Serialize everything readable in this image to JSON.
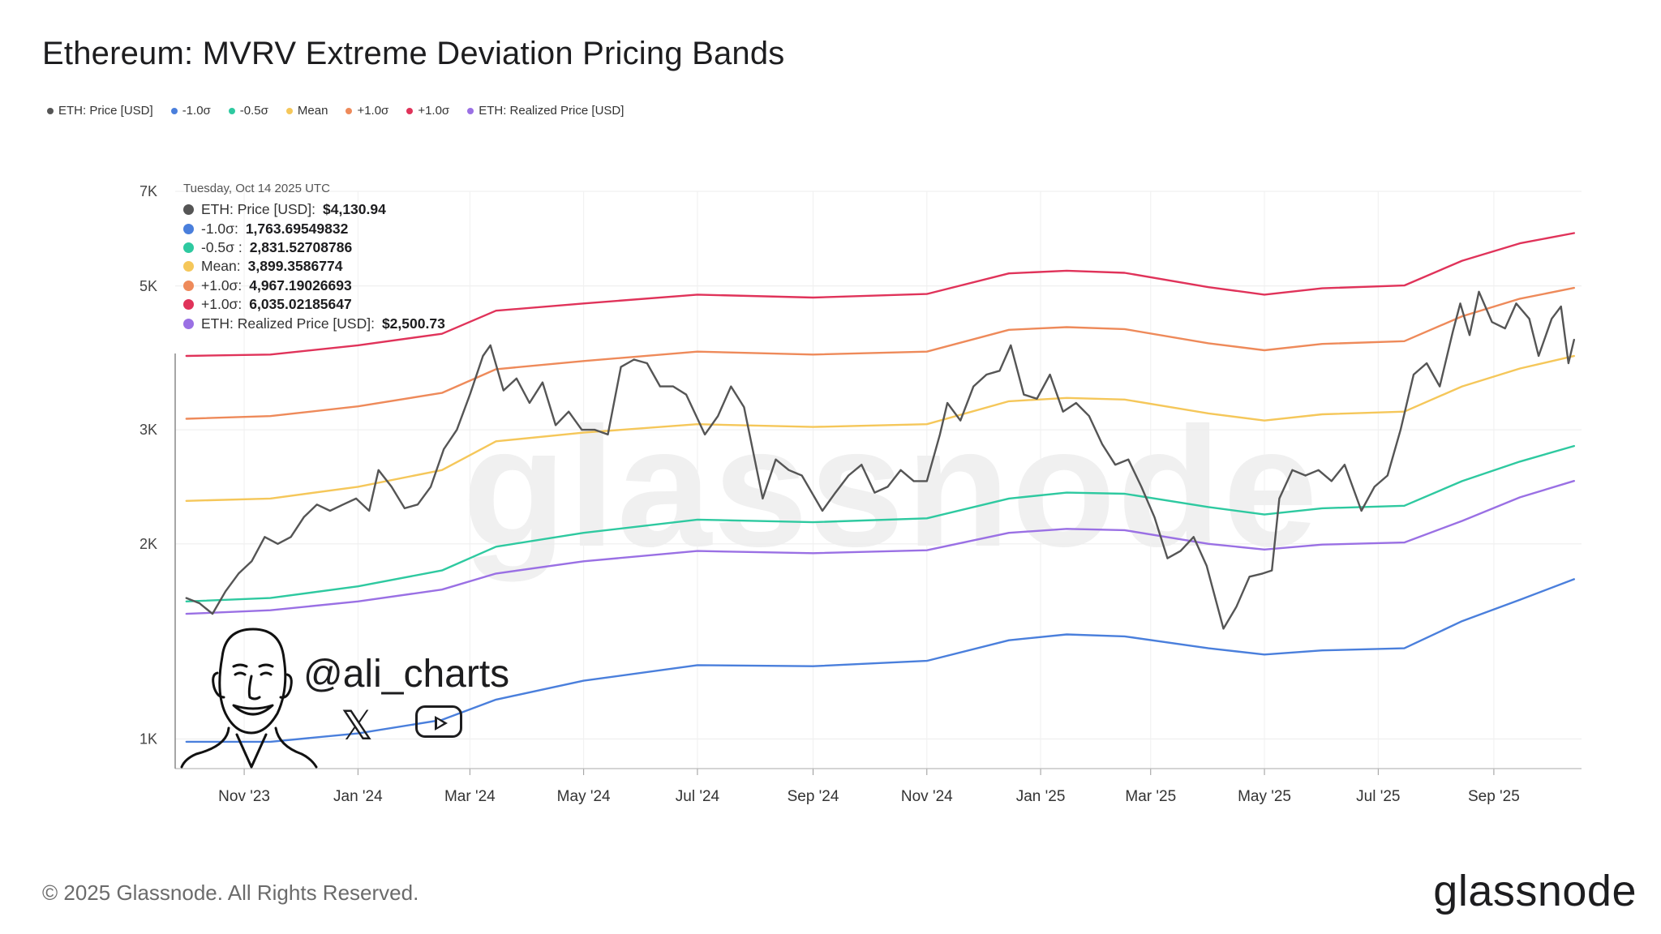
{
  "header": {
    "title": "Ethereum: MVRV Extreme Deviation Pricing Bands"
  },
  "footer": {
    "copyright": "© 2025 Glassnode. All Rights Reserved.",
    "brand": "glassnode"
  },
  "watermark": "glassnode",
  "branding": {
    "handle": "@ali_charts",
    "icons": [
      "avatar-sketch-icon",
      "x-logo-icon",
      "youtube-icon"
    ]
  },
  "tooltip": {
    "date": "Tuesday, Oct 14 2025 UTC",
    "rows": [
      {
        "label": "ETH: Price [USD]:",
        "value": "$4,130.94",
        "color": "#555555"
      },
      {
        "label": "-1.0σ:",
        "value": "1,763.69549832",
        "color": "#4a7fdc"
      },
      {
        "label": "-0.5σ :",
        "value": "2,831.52708786",
        "color": "#2ec9a0"
      },
      {
        "label": "Mean:",
        "value": "3,899.3586774",
        "color": "#f5c75a"
      },
      {
        "label": "+1.0σ:",
        "value": "4,967.19026693",
        "color": "#ee8a5a"
      },
      {
        "label": "+1.0σ:",
        "value": "6,035.02185647",
        "color": "#e0335a"
      },
      {
        "label": "ETH: Realized Price [USD]:",
        "value": "$2,500.73",
        "color": "#9a70e4"
      }
    ]
  },
  "chart_data": {
    "type": "line",
    "title": "Ethereum: MVRV Extreme Deviation Pricing Bands",
    "y_scale": "log",
    "ylim": [
      900,
      7000
    ],
    "y_ticks": [
      {
        "value": 1000,
        "label": "1K"
      },
      {
        "value": 2000,
        "label": "2K"
      },
      {
        "value": 3000,
        "label": "3K"
      },
      {
        "value": 5000,
        "label": "5K"
      },
      {
        "value": 7000,
        "label": "7K"
      }
    ],
    "xlim": [
      "2023-09-25",
      "2025-10-18"
    ],
    "x_ticks": [
      {
        "date": "2023-11-01",
        "label": "Nov '23"
      },
      {
        "date": "2024-01-01",
        "label": "Jan '24"
      },
      {
        "date": "2024-03-01",
        "label": "Mar '24"
      },
      {
        "date": "2024-05-01",
        "label": "May '24"
      },
      {
        "date": "2024-07-01",
        "label": "Jul '24"
      },
      {
        "date": "2024-09-01",
        "label": "Sep '24"
      },
      {
        "date": "2024-11-01",
        "label": "Nov '24"
      },
      {
        "date": "2025-01-01",
        "label": "Jan '25"
      },
      {
        "date": "2025-03-01",
        "label": "Mar '25"
      },
      {
        "date": "2025-05-01",
        "label": "May '25"
      },
      {
        "date": "2025-07-01",
        "label": "Jul '25"
      },
      {
        "date": "2025-09-01",
        "label": "Sep '25"
      }
    ],
    "grid": true,
    "legend_position": "top-left",
    "series": [
      {
        "name": "ETH: Price [USD]",
        "color": "#555555",
        "width": 2.4,
        "points": [
          [
            "2023-10-01",
            1650
          ],
          [
            "2023-10-08",
            1620
          ],
          [
            "2023-10-15",
            1560
          ],
          [
            "2023-10-22",
            1690
          ],
          [
            "2023-10-29",
            1800
          ],
          [
            "2023-11-05",
            1880
          ],
          [
            "2023-11-12",
            2050
          ],
          [
            "2023-11-19",
            2000
          ],
          [
            "2023-11-26",
            2050
          ],
          [
            "2023-12-03",
            2200
          ],
          [
            "2023-12-10",
            2300
          ],
          [
            "2023-12-17",
            2250
          ],
          [
            "2023-12-24",
            2300
          ],
          [
            "2023-12-31",
            2350
          ],
          [
            "2024-01-07",
            2250
          ],
          [
            "2024-01-12",
            2600
          ],
          [
            "2024-01-19",
            2450
          ],
          [
            "2024-01-26",
            2270
          ],
          [
            "2024-02-02",
            2300
          ],
          [
            "2024-02-09",
            2450
          ],
          [
            "2024-02-16",
            2800
          ],
          [
            "2024-02-23",
            3000
          ],
          [
            "2024-03-01",
            3400
          ],
          [
            "2024-03-08",
            3900
          ],
          [
            "2024-03-12",
            4050
          ],
          [
            "2024-03-19",
            3450
          ],
          [
            "2024-03-26",
            3600
          ],
          [
            "2024-04-02",
            3300
          ],
          [
            "2024-04-09",
            3550
          ],
          [
            "2024-04-16",
            3050
          ],
          [
            "2024-04-23",
            3200
          ],
          [
            "2024-04-30",
            3000
          ],
          [
            "2024-05-07",
            3000
          ],
          [
            "2024-05-14",
            2950
          ],
          [
            "2024-05-21",
            3750
          ],
          [
            "2024-05-28",
            3850
          ],
          [
            "2024-06-04",
            3800
          ],
          [
            "2024-06-11",
            3500
          ],
          [
            "2024-06-18",
            3500
          ],
          [
            "2024-06-25",
            3400
          ],
          [
            "2024-07-05",
            2950
          ],
          [
            "2024-07-12",
            3150
          ],
          [
            "2024-07-19",
            3500
          ],
          [
            "2024-07-26",
            3250
          ],
          [
            "2024-08-05",
            2350
          ],
          [
            "2024-08-12",
            2700
          ],
          [
            "2024-08-19",
            2600
          ],
          [
            "2024-08-26",
            2550
          ],
          [
            "2024-09-06",
            2250
          ],
          [
            "2024-09-13",
            2400
          ],
          [
            "2024-09-20",
            2550
          ],
          [
            "2024-09-27",
            2650
          ],
          [
            "2024-10-04",
            2400
          ],
          [
            "2024-10-11",
            2450
          ],
          [
            "2024-10-18",
            2600
          ],
          [
            "2024-10-25",
            2500
          ],
          [
            "2024-11-01",
            2500
          ],
          [
            "2024-11-08",
            2950
          ],
          [
            "2024-11-12",
            3300
          ],
          [
            "2024-11-19",
            3100
          ],
          [
            "2024-11-26",
            3500
          ],
          [
            "2024-12-03",
            3650
          ],
          [
            "2024-12-10",
            3700
          ],
          [
            "2024-12-16",
            4050
          ],
          [
            "2024-12-23",
            3400
          ],
          [
            "2024-12-30",
            3350
          ],
          [
            "2025-01-06",
            3650
          ],
          [
            "2025-01-13",
            3200
          ],
          [
            "2025-01-20",
            3300
          ],
          [
            "2025-01-27",
            3150
          ],
          [
            "2025-02-03",
            2850
          ],
          [
            "2025-02-10",
            2650
          ],
          [
            "2025-02-17",
            2700
          ],
          [
            "2025-02-24",
            2450
          ],
          [
            "2025-03-03",
            2200
          ],
          [
            "2025-03-10",
            1900
          ],
          [
            "2025-03-17",
            1950
          ],
          [
            "2025-03-24",
            2050
          ],
          [
            "2025-03-31",
            1850
          ],
          [
            "2025-04-09",
            1480
          ],
          [
            "2025-04-16",
            1600
          ],
          [
            "2025-04-23",
            1780
          ],
          [
            "2025-04-30",
            1800
          ],
          [
            "2025-05-05",
            1820
          ],
          [
            "2025-05-09",
            2350
          ],
          [
            "2025-05-16",
            2600
          ],
          [
            "2025-05-23",
            2550
          ],
          [
            "2025-05-30",
            2600
          ],
          [
            "2025-06-06",
            2500
          ],
          [
            "2025-06-13",
            2650
          ],
          [
            "2025-06-22",
            2250
          ],
          [
            "2025-06-29",
            2450
          ],
          [
            "2025-07-06",
            2550
          ],
          [
            "2025-07-13",
            3000
          ],
          [
            "2025-07-20",
            3650
          ],
          [
            "2025-07-27",
            3800
          ],
          [
            "2025-08-03",
            3500
          ],
          [
            "2025-08-10",
            4250
          ],
          [
            "2025-08-14",
            4700
          ],
          [
            "2025-08-19",
            4200
          ],
          [
            "2025-08-24",
            4900
          ],
          [
            "2025-08-31",
            4400
          ],
          [
            "2025-09-07",
            4300
          ],
          [
            "2025-09-13",
            4700
          ],
          [
            "2025-09-20",
            4450
          ],
          [
            "2025-09-25",
            3900
          ],
          [
            "2025-10-02",
            4450
          ],
          [
            "2025-10-07",
            4650
          ],
          [
            "2025-10-11",
            3800
          ],
          [
            "2025-10-14",
            4130
          ]
        ]
      },
      {
        "name": "-1.0σ",
        "color": "#4a7fdc",
        "width": 2.4,
        "points": [
          [
            "2023-10-01",
            990
          ],
          [
            "2023-11-15",
            990
          ],
          [
            "2024-01-01",
            1020
          ],
          [
            "2024-02-15",
            1070
          ],
          [
            "2024-03-15",
            1150
          ],
          [
            "2024-05-01",
            1230
          ],
          [
            "2024-07-01",
            1300
          ],
          [
            "2024-09-01",
            1295
          ],
          [
            "2024-11-01",
            1320
          ],
          [
            "2024-12-15",
            1420
          ],
          [
            "2025-01-15",
            1450
          ],
          [
            "2025-02-15",
            1440
          ],
          [
            "2025-04-01",
            1380
          ],
          [
            "2025-05-01",
            1350
          ],
          [
            "2025-06-01",
            1370
          ],
          [
            "2025-07-15",
            1380
          ],
          [
            "2025-08-15",
            1520
          ],
          [
            "2025-09-15",
            1640
          ],
          [
            "2025-10-14",
            1764
          ]
        ]
      },
      {
        "name": "-0.5σ",
        "color": "#2ec9a0",
        "width": 2.4,
        "points": [
          [
            "2023-10-01",
            1630
          ],
          [
            "2023-11-15",
            1650
          ],
          [
            "2024-01-01",
            1720
          ],
          [
            "2024-02-15",
            1820
          ],
          [
            "2024-03-15",
            1980
          ],
          [
            "2024-05-01",
            2080
          ],
          [
            "2024-07-01",
            2180
          ],
          [
            "2024-09-01",
            2160
          ],
          [
            "2024-11-01",
            2190
          ],
          [
            "2024-12-15",
            2350
          ],
          [
            "2025-01-15",
            2400
          ],
          [
            "2025-02-15",
            2390
          ],
          [
            "2025-04-01",
            2280
          ],
          [
            "2025-05-01",
            2220
          ],
          [
            "2025-06-01",
            2270
          ],
          [
            "2025-07-15",
            2290
          ],
          [
            "2025-08-15",
            2500
          ],
          [
            "2025-09-15",
            2680
          ],
          [
            "2025-10-14",
            2832
          ]
        ]
      },
      {
        "name": "Mean",
        "color": "#f5c75a",
        "width": 2.4,
        "points": [
          [
            "2023-10-01",
            2330
          ],
          [
            "2023-11-15",
            2350
          ],
          [
            "2024-01-01",
            2450
          ],
          [
            "2024-02-15",
            2600
          ],
          [
            "2024-03-15",
            2880
          ],
          [
            "2024-05-01",
            2970
          ],
          [
            "2024-07-01",
            3060
          ],
          [
            "2024-09-01",
            3030
          ],
          [
            "2024-11-01",
            3060
          ],
          [
            "2024-12-15",
            3320
          ],
          [
            "2025-01-15",
            3360
          ],
          [
            "2025-02-15",
            3340
          ],
          [
            "2025-04-01",
            3180
          ],
          [
            "2025-05-01",
            3100
          ],
          [
            "2025-06-01",
            3170
          ],
          [
            "2025-07-15",
            3200
          ],
          [
            "2025-08-15",
            3500
          ],
          [
            "2025-09-15",
            3730
          ],
          [
            "2025-10-14",
            3899
          ]
        ]
      },
      {
        "name": "+1.0σ",
        "color": "#ee8a5a",
        "width": 2.4,
        "points": [
          [
            "2023-10-01",
            3120
          ],
          [
            "2023-11-15",
            3150
          ],
          [
            "2024-01-01",
            3260
          ],
          [
            "2024-02-15",
            3420
          ],
          [
            "2024-03-15",
            3720
          ],
          [
            "2024-05-01",
            3830
          ],
          [
            "2024-07-01",
            3960
          ],
          [
            "2024-09-01",
            3920
          ],
          [
            "2024-11-01",
            3960
          ],
          [
            "2024-12-15",
            4280
          ],
          [
            "2025-01-15",
            4320
          ],
          [
            "2025-02-15",
            4290
          ],
          [
            "2025-04-01",
            4080
          ],
          [
            "2025-05-01",
            3980
          ],
          [
            "2025-06-01",
            4070
          ],
          [
            "2025-07-15",
            4110
          ],
          [
            "2025-08-15",
            4490
          ],
          [
            "2025-09-15",
            4780
          ],
          [
            "2025-10-14",
            4967
          ]
        ]
      },
      {
        "name": "+1.0σ",
        "color": "#e0335a",
        "width": 2.4,
        "points": [
          [
            "2023-10-01",
            3900
          ],
          [
            "2023-11-15",
            3920
          ],
          [
            "2024-01-01",
            4050
          ],
          [
            "2024-02-15",
            4220
          ],
          [
            "2024-03-15",
            4580
          ],
          [
            "2024-05-01",
            4700
          ],
          [
            "2024-07-01",
            4850
          ],
          [
            "2024-09-01",
            4800
          ],
          [
            "2024-11-01",
            4860
          ],
          [
            "2024-12-15",
            5230
          ],
          [
            "2025-01-15",
            5280
          ],
          [
            "2025-02-15",
            5240
          ],
          [
            "2025-04-01",
            4980
          ],
          [
            "2025-05-01",
            4850
          ],
          [
            "2025-06-01",
            4960
          ],
          [
            "2025-07-15",
            5010
          ],
          [
            "2025-08-15",
            5470
          ],
          [
            "2025-09-15",
            5820
          ],
          [
            "2025-10-14",
            6035
          ]
        ]
      },
      {
        "name": "ETH: Realized Price [USD]",
        "color": "#9a70e4",
        "width": 2.4,
        "points": [
          [
            "2023-10-01",
            1560
          ],
          [
            "2023-11-15",
            1580
          ],
          [
            "2024-01-01",
            1630
          ],
          [
            "2024-02-15",
            1700
          ],
          [
            "2024-03-15",
            1800
          ],
          [
            "2024-05-01",
            1880
          ],
          [
            "2024-07-01",
            1950
          ],
          [
            "2024-09-01",
            1935
          ],
          [
            "2024-11-01",
            1955
          ],
          [
            "2024-12-15",
            2080
          ],
          [
            "2025-01-15",
            2110
          ],
          [
            "2025-02-15",
            2100
          ],
          [
            "2025-04-01",
            2000
          ],
          [
            "2025-05-01",
            1960
          ],
          [
            "2025-06-01",
            1995
          ],
          [
            "2025-07-15",
            2010
          ],
          [
            "2025-08-15",
            2170
          ],
          [
            "2025-09-15",
            2360
          ],
          [
            "2025-10-14",
            2501
          ]
        ]
      }
    ]
  }
}
